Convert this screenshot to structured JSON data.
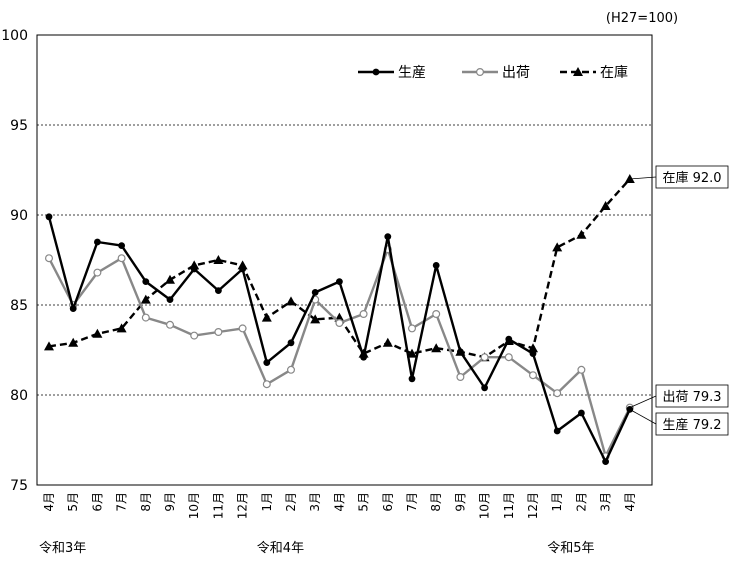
{
  "chart_data": {
    "type": "line",
    "unit_note": "(H27=100)",
    "categories": [
      "4月",
      "5月",
      "6月",
      "7月",
      "8月",
      "9月",
      "10月",
      "11月",
      "12月",
      "1月",
      "2月",
      "3月",
      "4月",
      "5月",
      "6月",
      "7月",
      "8月",
      "9月",
      "10月",
      "11月",
      "12月",
      "1月",
      "2月",
      "3月",
      "4月"
    ],
    "year_labels": [
      {
        "label": "令和3年",
        "index": 0
      },
      {
        "label": "令和4年",
        "index": 9
      },
      {
        "label": "令和5年",
        "index": 21
      }
    ],
    "ylim": [
      75,
      100
    ],
    "yticks": [
      75,
      80,
      85,
      90,
      95,
      100
    ],
    "grid": "horizontal dotted",
    "legend_position": "top-right",
    "series": [
      {
        "name": "生産",
        "color": "#000000",
        "style": "solid",
        "marker": "filled-circle",
        "values": [
          89.9,
          84.8,
          88.5,
          88.3,
          86.3,
          85.3,
          87.0,
          85.8,
          87.0,
          81.8,
          82.9,
          85.7,
          86.3,
          82.1,
          88.8,
          80.9,
          87.2,
          82.4,
          80.4,
          83.1,
          82.3,
          78.0,
          79.0,
          76.3,
          79.2
        ]
      },
      {
        "name": "出荷",
        "color": "#888888",
        "style": "solid",
        "marker": "open-circle",
        "values": [
          87.6,
          85.0,
          86.8,
          87.6,
          84.3,
          83.9,
          83.3,
          83.5,
          83.7,
          80.6,
          81.4,
          85.3,
          84.0,
          84.5,
          88.1,
          83.7,
          84.5,
          81.0,
          82.1,
          82.1,
          81.1,
          80.1,
          81.4,
          76.6,
          79.3
        ]
      },
      {
        "name": "在庫",
        "color": "#000000",
        "style": "dashed",
        "marker": "filled-triangle",
        "values": [
          82.7,
          82.9,
          83.4,
          83.7,
          85.3,
          86.4,
          87.2,
          87.5,
          87.2,
          84.3,
          85.2,
          84.2,
          84.3,
          82.3,
          82.9,
          82.3,
          82.6,
          82.4,
          82.1,
          83.0,
          82.6,
          88.2,
          88.9,
          90.5,
          92.0
        ]
      }
    ],
    "callouts": [
      {
        "series": "在庫",
        "text": "在庫 92.0",
        "color": "#000000"
      },
      {
        "series": "出荷",
        "text": "出荷 79.3",
        "color": "#ff0000"
      },
      {
        "series": "生産",
        "text": "生産 79.2",
        "color": "#000000"
      }
    ]
  }
}
